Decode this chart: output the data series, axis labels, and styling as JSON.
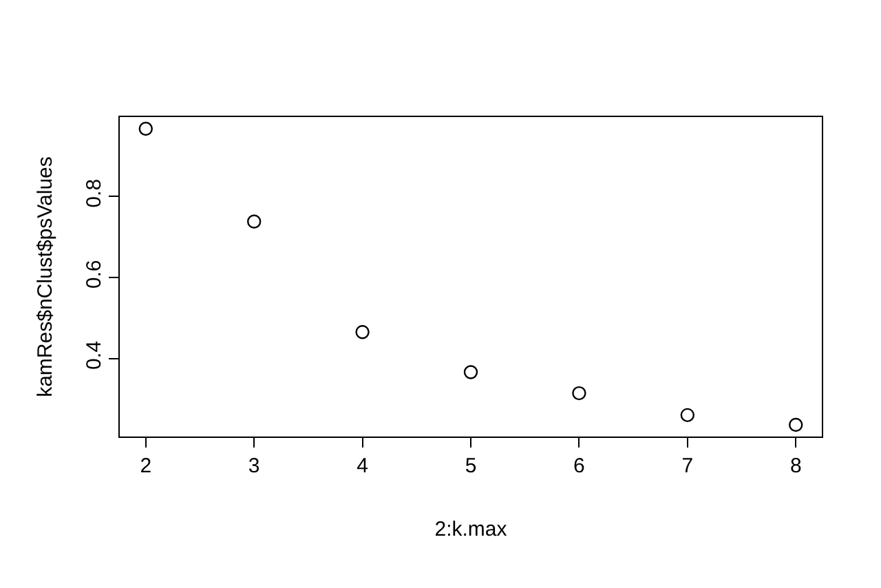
{
  "chart_data": {
    "type": "scatter",
    "xlabel": "2:k.max",
    "ylabel": "kamRes$nClust$psValues",
    "x": [
      2,
      3,
      4,
      5,
      6,
      7,
      8
    ],
    "series": [
      {
        "color": "#000000",
        "values": [
          0.967,
          0.738,
          0.465,
          0.366,
          0.314,
          0.26,
          0.236
        ]
      }
    ],
    "xlim": [
      1.76,
      8.24
    ],
    "ylim": [
      0.207,
      0.996
    ],
    "xticks": [
      2,
      3,
      4,
      5,
      6,
      7,
      8
    ],
    "yticks": [
      0.4,
      0.6,
      0.8
    ],
    "marker": "circle"
  }
}
